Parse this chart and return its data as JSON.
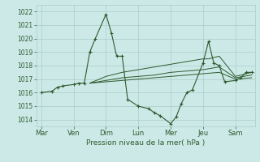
{
  "xlabel": "Pression niveau de la mer( hPa )",
  "bg_color": "#cce9e7",
  "grid_color": "#aaccca",
  "line_color": "#2d5a2d",
  "ylim": [
    1013.5,
    1022.5
  ],
  "yticks": [
    1014,
    1015,
    1016,
    1017,
    1018,
    1019,
    1020,
    1021,
    1022
  ],
  "day_labels": [
    "Mar",
    "Ven",
    "Dim",
    "Lun",
    "Mer",
    "Jeu",
    "Sam"
  ],
  "day_positions": [
    0,
    1,
    2,
    3,
    4,
    5,
    6
  ],
  "xlim": [
    -0.15,
    6.6
  ],
  "line1_x": [
    0.0,
    0.33,
    0.5,
    0.67,
    1.0,
    1.17,
    1.33,
    1.5,
    1.67,
    2.0,
    2.17,
    2.33,
    2.5,
    2.67,
    3.0,
    3.33,
    3.5,
    3.67,
    4.0,
    4.17,
    4.33,
    4.5,
    4.67,
    5.0,
    5.17,
    5.33,
    5.5,
    5.67,
    6.0,
    6.17,
    6.33,
    6.5
  ],
  "line1_y": [
    1016.0,
    1016.1,
    1016.4,
    1016.5,
    1016.6,
    1016.7,
    1016.7,
    1019.0,
    1020.0,
    1021.8,
    1020.4,
    1018.7,
    1018.7,
    1015.5,
    1015.0,
    1014.8,
    1014.5,
    1014.3,
    1013.7,
    1014.2,
    1015.2,
    1016.0,
    1016.2,
    1018.2,
    1019.8,
    1018.2,
    1018.0,
    1016.8,
    1016.9,
    1017.1,
    1017.5,
    1017.5
  ],
  "line2_x": [
    1.5,
    2.0,
    2.5,
    3.0,
    3.5,
    4.0,
    4.5,
    5.0,
    5.17,
    5.5,
    6.0,
    6.5
  ],
  "line2_y": [
    1016.7,
    1017.2,
    1017.5,
    1017.7,
    1017.9,
    1018.1,
    1018.3,
    1018.5,
    1018.5,
    1018.7,
    1017.2,
    1017.5
  ],
  "line3_x": [
    1.5,
    2.0,
    2.5,
    3.0,
    3.5,
    4.0,
    4.5,
    5.0,
    5.5,
    6.0,
    6.5
  ],
  "line3_y": [
    1016.7,
    1016.9,
    1017.1,
    1017.2,
    1017.3,
    1017.5,
    1017.6,
    1017.7,
    1017.9,
    1017.1,
    1017.3
  ],
  "line4_x": [
    1.5,
    2.0,
    2.5,
    3.0,
    3.5,
    4.0,
    4.5,
    5.0,
    5.5,
    6.0,
    6.5
  ],
  "line4_y": [
    1016.7,
    1016.8,
    1016.9,
    1017.0,
    1017.1,
    1017.2,
    1017.3,
    1017.4,
    1017.5,
    1017.0,
    1017.1
  ]
}
